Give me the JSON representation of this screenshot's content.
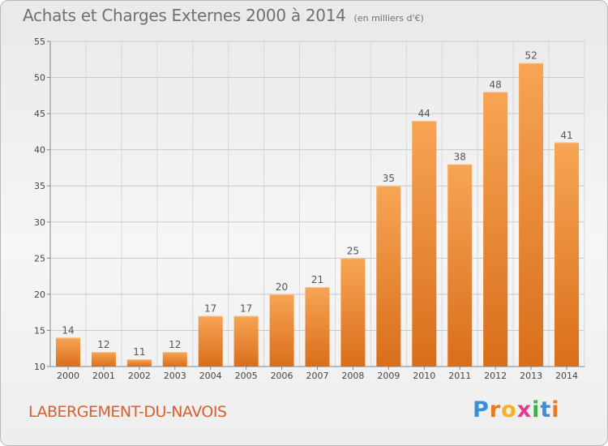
{
  "header": {
    "title": "Achats et Charges Externes 2000 à 2014",
    "unit": "(en milliers d'€)"
  },
  "footer": {
    "place": "LABERGEMENT-DU-NAVOIS",
    "logo": [
      "P",
      "r",
      "o",
      "x",
      "i",
      "t",
      "i"
    ]
  },
  "colors": {
    "bar_light": "#f7a554",
    "bar_dark": "#d96e1a",
    "place_text": "#d8602c",
    "logo": [
      "#3a8fd6",
      "#e8791f",
      "#f0b321",
      "#e83a8a",
      "#3fae49",
      "#3a8fd6",
      "#e8791f"
    ]
  },
  "chart_data": {
    "type": "bar",
    "title": "Achats et Charges Externes 2000 à 2014",
    "subtitle": "(en milliers d'€)",
    "categories": [
      "2000",
      "2001",
      "2002",
      "2003",
      "2004",
      "2005",
      "2006",
      "2007",
      "2008",
      "2009",
      "2010",
      "2011",
      "2012",
      "2013",
      "2014"
    ],
    "values": [
      14,
      12,
      11,
      12,
      17,
      17,
      20,
      21,
      25,
      35,
      44,
      38,
      48,
      52,
      41
    ],
    "ylim": [
      10,
      55
    ],
    "yticks": [
      10,
      15,
      20,
      25,
      30,
      35,
      40,
      45,
      50,
      55
    ],
    "grid": true,
    "legend": "none",
    "data_labels": true
  }
}
